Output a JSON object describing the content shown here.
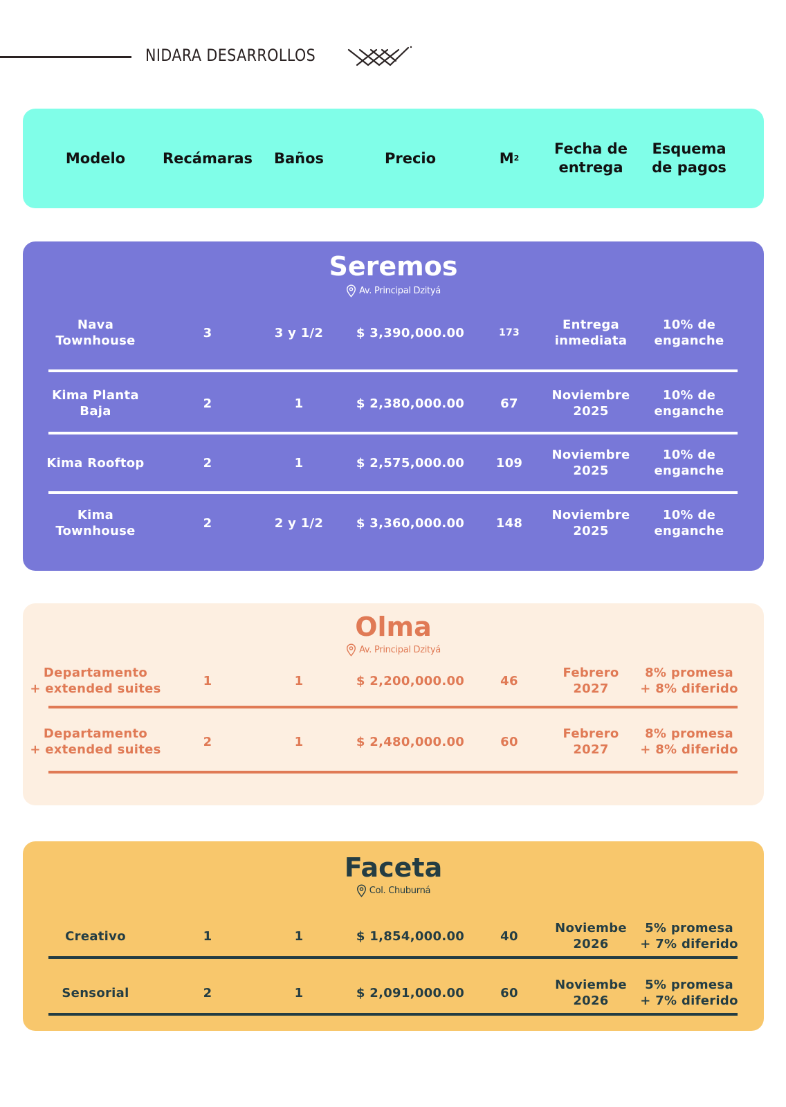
{
  "header": {
    "brand": "NIDARA DESARROLLOS"
  },
  "columns": {
    "modelo": "Modelo",
    "recamaras": "Recámaras",
    "banos": "Baños",
    "precio": "Precio",
    "m2_base": "M",
    "m2_sup": "2",
    "fecha_1": "Fecha de",
    "fecha_2": "entrega",
    "esquema_1": "Esquema",
    "esquema_2": "de pagos"
  },
  "seremos": {
    "name": "Seremos",
    "location": "Av. Principal Dzityá",
    "rows": [
      {
        "modelo_1": "Nava",
        "modelo_2": "Townhouse",
        "recamaras": "3",
        "banos": "3 y 1/2",
        "precio": "$ 3,390,000.00",
        "m2": "173",
        "fecha_1": "Entrega",
        "fecha_2": "inmediata",
        "esquema_1": "10% de",
        "esquema_2": "enganche"
      },
      {
        "modelo_1": "Kima Planta",
        "modelo_2": "Baja",
        "recamaras": "2",
        "banos": "1",
        "precio": "$ 2,380,000.00",
        "m2": "67",
        "fecha_1": "Noviembre",
        "fecha_2": "2025",
        "esquema_1": "10% de",
        "esquema_2": "enganche"
      },
      {
        "modelo_1": "Kima Rooftop",
        "modelo_2": "",
        "recamaras": "2",
        "banos": "1",
        "precio": "$ 2,575,000.00",
        "m2": "109",
        "fecha_1": "Noviembre",
        "fecha_2": "2025",
        "esquema_1": "10% de",
        "esquema_2": "enganche"
      },
      {
        "modelo_1": "Kima",
        "modelo_2": "Townhouse",
        "recamaras": "2",
        "banos": "2 y 1/2",
        "precio": "$ 3,360,000.00",
        "m2": "148",
        "fecha_1": "Noviembre",
        "fecha_2": "2025",
        "esquema_1": "10% de",
        "esquema_2": "enganche"
      }
    ]
  },
  "olma": {
    "name": "Olma",
    "location": "Av. Principal Dzityá",
    "rows": [
      {
        "modelo_1": "Departamento",
        "modelo_2": "+ extended suites",
        "recamaras": "1",
        "banos": "1",
        "precio": "$ 2,200,000.00",
        "m2": "46",
        "fecha_1": "Febrero",
        "fecha_2": "2027",
        "esquema_1": "8% promesa",
        "esquema_2": "+ 8% diferido"
      },
      {
        "modelo_1": "Departamento",
        "modelo_2": "+ extended suites",
        "recamaras": "2",
        "banos": "1",
        "precio": "$ 2,480,000.00",
        "m2": "60",
        "fecha_1": "Febrero",
        "fecha_2": "2027",
        "esquema_1": "8% promesa",
        "esquema_2": "+ 8% diferido"
      }
    ]
  },
  "faceta": {
    "name": "Faceta",
    "location": "Col. Chuburná",
    "rows": [
      {
        "modelo_1": "Creativo",
        "modelo_2": "",
        "recamaras": "1",
        "banos": "1",
        "precio": "$ 1,854,000.00",
        "m2": "40",
        "fecha_1": "Noviembe",
        "fecha_2": "2026",
        "esquema_1": "5% promesa",
        "esquema_2": "+ 7% diferido"
      },
      {
        "modelo_1": "Sensorial",
        "modelo_2": "",
        "recamaras": "2",
        "banos": "1",
        "precio": "$ 2,091,000.00",
        "m2": "60",
        "fecha_1": "Noviembe",
        "fecha_2": "2026",
        "esquema_1": "5% promesa",
        "esquema_2": "+ 7% diferido"
      }
    ]
  },
  "colors": {
    "header_band": "#80fee8",
    "seremos": "#7878d8",
    "olma_bg": "#fdefe1",
    "olma_accent": "#e07a55",
    "faceta_bg": "#f8c76c",
    "faceta_accent": "#243d43"
  }
}
